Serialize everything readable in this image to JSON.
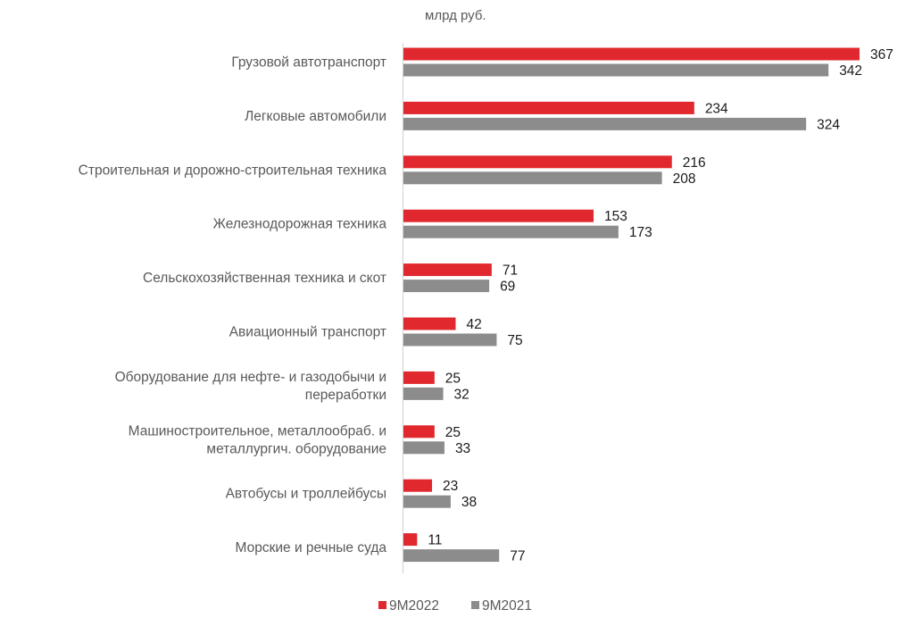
{
  "chart_data": {
    "type": "bar",
    "orientation": "horizontal",
    "unit": "млрд руб.",
    "categories": [
      [
        "Грузовой автотранспорт"
      ],
      [
        "Легковые автомобили"
      ],
      [
        "Строительная и дорожно-строительная техника"
      ],
      [
        "Железнодорожная техника"
      ],
      [
        "Сельскохозяйственная техника и скот"
      ],
      [
        "Авиационный транспорт"
      ],
      [
        "Оборудование для нефте- и газодобычи и",
        "переработки"
      ],
      [
        "Машиностроительное, металлообраб. и",
        "металлургич. оборудование"
      ],
      [
        "Автобусы и троллейбусы"
      ],
      [
        "Морские и речные суда"
      ]
    ],
    "series": [
      {
        "name": "9M2022",
        "color": "#e0282e",
        "values": [
          367,
          234,
          216,
          153,
          71,
          42,
          25,
          25,
          23,
          11
        ]
      },
      {
        "name": "9M2021",
        "color": "#8c8c8c",
        "values": [
          342,
          324,
          208,
          173,
          69,
          75,
          32,
          33,
          38,
          77
        ]
      }
    ],
    "xlim": [
      0,
      367
    ],
    "grid": false,
    "legend": "bottom-center"
  }
}
